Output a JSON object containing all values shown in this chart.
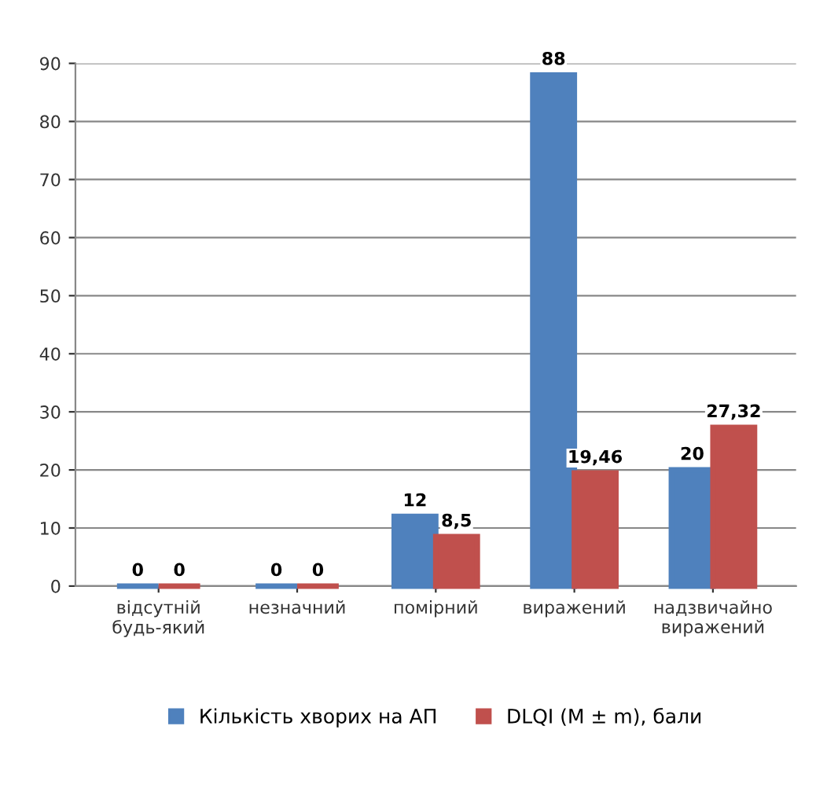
{
  "chart_data": {
    "type": "bar",
    "categories": [
      "відсутній будь-який",
      "незначний",
      "помірний",
      "виражений",
      "надзвичайно виражений"
    ],
    "series": [
      {
        "name": "Кількість хворих на АП",
        "color": "#4f81bd",
        "values": [
          0,
          0,
          12,
          88,
          20
        ],
        "value_labels": [
          "0",
          "0",
          "12",
          "88",
          "20"
        ]
      },
      {
        "name": "DLQI (M ± m), бали",
        "color": "#c0504d",
        "values": [
          0,
          0,
          8.5,
          19.46,
          27.32
        ],
        "value_labels": [
          "0",
          "0",
          "8,5",
          "19,46",
          "27,32"
        ]
      }
    ],
    "ylim": [
      0,
      90
    ],
    "yticks": [
      0,
      10,
      20,
      30,
      40,
      50,
      60,
      70,
      80,
      90
    ],
    "grid": "y",
    "legend": "bottom"
  }
}
